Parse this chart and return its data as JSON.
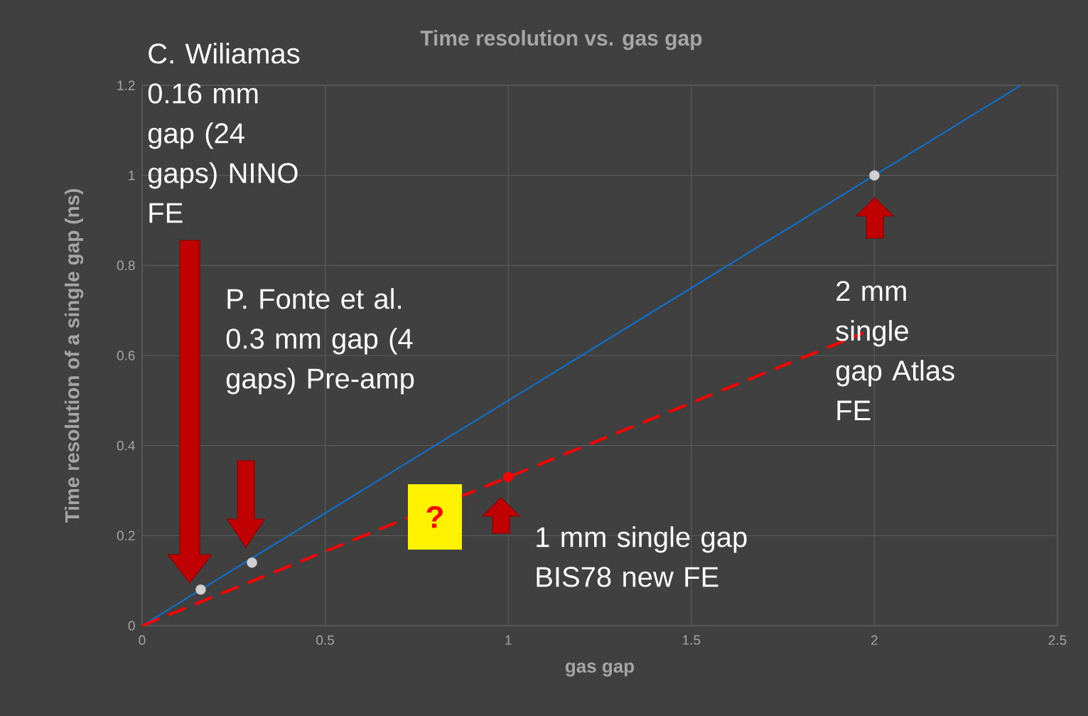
{
  "chart_data": {
    "type": "scatter",
    "title": "Time resolution vs. gas gap",
    "xlabel": "gas gap",
    "ylabel": "Time resolution of a single gap (ns)",
    "xlim": [
      0,
      2.5
    ],
    "ylim": [
      0,
      1.2
    ],
    "xticks": [
      0,
      0.5,
      1,
      1.5,
      2,
      2.5
    ],
    "yticks": [
      0,
      0.2,
      0.4,
      0.6,
      0.8,
      1,
      1.2
    ],
    "grid": true,
    "series": [
      {
        "type": "line",
        "color": "#0a74da",
        "line_style": "solid",
        "marker": "none",
        "x": [
          0,
          2.4
        ],
        "values": [
          0,
          1.2
        ]
      },
      {
        "type": "line",
        "color": "#ff0000",
        "line_style": "dashed",
        "marker": "none",
        "x": [
          0,
          1.97
        ],
        "values": [
          0,
          0.65
        ]
      },
      {
        "color": "#d0d0d0",
        "marker": "circle",
        "x": [
          0.16,
          0.3,
          2
        ],
        "values": [
          0.08,
          0.14,
          1.0
        ]
      },
      {
        "color": "#ff0000",
        "marker": "circle",
        "x": [
          1
        ],
        "values": [
          0.33
        ]
      }
    ],
    "annotations": [
      "C. Wiliamas 0.16 mm gap (24 gaps) NINO FE",
      "P. Fonte et al. 0.3 mm gap (4 gaps) Pre-amp",
      "1 mm single gap BIS78 new FE",
      "2 mm single gap Atlas FE",
      "?"
    ]
  }
}
